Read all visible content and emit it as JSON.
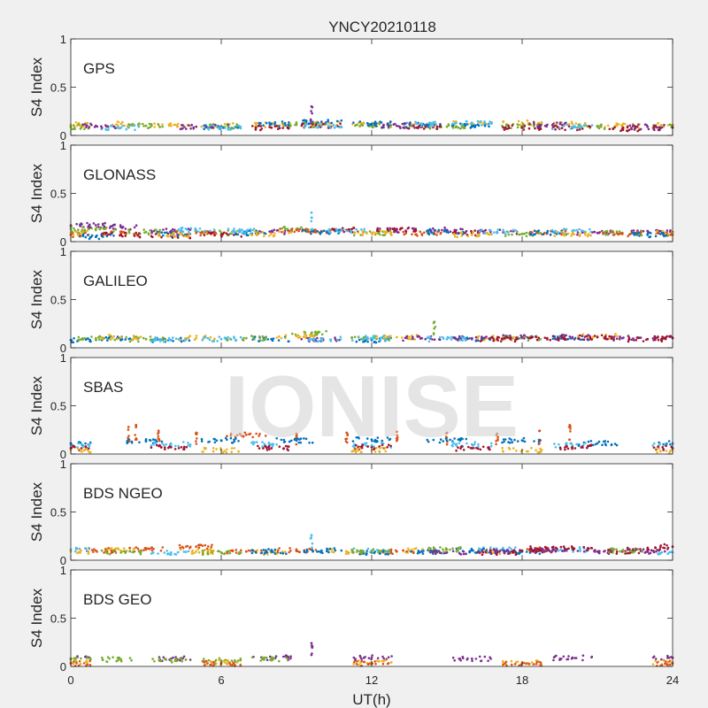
{
  "chart_data": {
    "type": "scatter",
    "title": "YNCY20210118",
    "xlabel": "UT(h)",
    "ylabel": "S4 Index",
    "xlim": [
      0,
      24
    ],
    "ylim": [
      0,
      1
    ],
    "xticks": [
      "0",
      "6",
      "12",
      "18",
      "24"
    ],
    "yticks": [
      "0",
      "0.5",
      "1"
    ],
    "grid": false,
    "watermark": "IONISE",
    "colors": [
      "#0072BD",
      "#D95319",
      "#EDB120",
      "#7E2F8E",
      "#77AC30",
      "#4DBEEE",
      "#A2142F"
    ],
    "panels": [
      {
        "label": "GPS",
        "series": [
          {
            "color": "#EDB120",
            "x": [
              0,
              2,
              4,
              6,
              8,
              10,
              12,
              14,
              16,
              18,
              20,
              22,
              24
            ],
            "y": [
              0.11,
              0.12,
              0.1,
              0.1,
              0.11,
              0.12,
              0.11,
              0.1,
              0.12,
              0.13,
              0.12,
              0.1,
              0.11
            ]
          },
          {
            "color": "#77AC30",
            "x": [
              0,
              3,
              6,
              9,
              12,
              15,
              18,
              21,
              24
            ],
            "y": [
              0.09,
              0.1,
              0.09,
              0.11,
              0.1,
              0.09,
              0.1,
              0.09,
              0.1
            ]
          },
          {
            "color": "#0072BD",
            "x": [
              6,
              8,
              10,
              12,
              14,
              16
            ],
            "y": [
              0.09,
              0.12,
              0.14,
              0.12,
              0.11,
              0.1
            ]
          },
          {
            "color": "#A2142F",
            "x": [
              8,
              10,
              14,
              18,
              20,
              22,
              24
            ],
            "y": [
              0.08,
              0.1,
              0.09,
              0.08,
              0.08,
              0.07,
              0.08
            ]
          },
          {
            "color": "#4DBEEE",
            "x": [
              2,
              6,
              10,
              14,
              16,
              20
            ],
            "y": [
              0.08,
              0.08,
              0.1,
              0.12,
              0.13,
              0.09
            ]
          },
          {
            "color": "#7E2F8E",
            "x": [
              1,
              5,
              9.6,
              13,
              19,
              23
            ],
            "y": [
              0.1,
              0.09,
              0.3,
              0.1,
              0.11,
              0.09
            ]
          }
        ]
      },
      {
        "label": "GLONASS",
        "series": [
          {
            "color": "#7E2F8E",
            "x": [
              0,
              1,
              2,
              4,
              8,
              13,
              15,
              17,
              21,
              23,
              24
            ],
            "y": [
              0.16,
              0.17,
              0.15,
              0.11,
              0.1,
              0.12,
              0.12,
              0.1,
              0.09,
              0.11,
              0.1
            ]
          },
          {
            "color": "#77AC30",
            "x": [
              0,
              1,
              3,
              6,
              9,
              12,
              18,
              22
            ],
            "y": [
              0.13,
              0.12,
              0.1,
              0.09,
              0.13,
              0.09,
              0.08,
              0.09
            ]
          },
          {
            "color": "#D95319",
            "x": [
              0,
              2,
              5,
              9,
              10,
              14,
              19,
              22,
              24
            ],
            "y": [
              0.07,
              0.08,
              0.09,
              0.12,
              0.11,
              0.08,
              0.09,
              0.08,
              0.07
            ]
          },
          {
            "color": "#A2142F",
            "x": [
              2,
              4,
              6,
              11,
              13,
              16
            ],
            "y": [
              0.07,
              0.06,
              0.07,
              0.12,
              0.13,
              0.09
            ]
          },
          {
            "color": "#0072BD",
            "x": [
              1,
              4,
              7,
              10,
              15,
              19,
              23
            ],
            "y": [
              0.05,
              0.08,
              0.09,
              0.1,
              0.1,
              0.09,
              0.07
            ]
          },
          {
            "color": "#4DBEEE",
            "x": [
              5,
              7,
              9.6,
              11,
              17,
              20
            ],
            "y": [
              0.12,
              0.11,
              0.3,
              0.11,
              0.1,
              0.11
            ]
          },
          {
            "color": "#EDB120",
            "x": [
              0,
              4,
              8,
              12,
              16,
              20,
              24
            ],
            "y": [
              0.09,
              0.07,
              0.08,
              0.09,
              0.07,
              0.08,
              0.09
            ]
          }
        ]
      },
      {
        "label": "GALILEO",
        "series": [
          {
            "color": "#0072BD",
            "x": [
              0,
              2,
              4,
              8,
              12,
              16,
              20
            ],
            "y": [
              0.08,
              0.09,
              0.08,
              0.09,
              0.08,
              0.09,
              0.1
            ]
          },
          {
            "color": "#77AC30",
            "x": [
              1,
              3,
              7,
              9.6,
              12,
              14.5,
              18
            ],
            "y": [
              0.1,
              0.09,
              0.1,
              0.15,
              0.1,
              0.27,
              0.1
            ]
          },
          {
            "color": "#EDB120",
            "x": [
              2,
              5,
              9,
              13,
              17,
              21
            ],
            "y": [
              0.11,
              0.1,
              0.12,
              0.11,
              0.1,
              0.12
            ]
          },
          {
            "color": "#7E2F8E",
            "x": [
              10,
              14,
              16,
              18,
              20,
              22,
              24
            ],
            "y": [
              0.09,
              0.1,
              0.1,
              0.11,
              0.11,
              0.1,
              0.1
            ]
          },
          {
            "color": "#A2142F",
            "x": [
              17,
              19,
              21,
              23,
              24
            ],
            "y": [
              0.09,
              0.1,
              0.11,
              0.09,
              0.1
            ]
          },
          {
            "color": "#4DBEEE",
            "x": [
              4,
              6,
              10,
              12,
              15
            ],
            "y": [
              0.08,
              0.09,
              0.09,
              0.1,
              0.09
            ]
          }
        ]
      },
      {
        "label": "SBAS",
        "series": [
          {
            "color": "#D95319",
            "x": [
              2.3,
              2.6,
              3.5,
              5,
              7,
              9,
              11,
              13,
              15,
              17,
              18.7,
              19.9
            ],
            "y": [
              0.28,
              0.3,
              0.24,
              0.22,
              0.2,
              0.21,
              0.22,
              0.23,
              0.22,
              0.21,
              0.24,
              0.3
            ]
          },
          {
            "color": "#0072BD",
            "x": [
              0,
              3,
              6,
              9,
              12,
              15,
              18,
              21,
              24
            ],
            "y": [
              0.11,
              0.13,
              0.14,
              0.14,
              0.15,
              0.14,
              0.14,
              0.11,
              0.11
            ]
          },
          {
            "color": "#4DBEEE",
            "x": [
              0,
              4,
              8,
              12,
              16,
              20,
              24
            ],
            "y": [
              0.09,
              0.1,
              0.1,
              0.09,
              0.1,
              0.09,
              0.1
            ]
          },
          {
            "color": "#A2142F",
            "x": [
              0,
              4,
              8,
              12,
              16,
              20,
              24
            ],
            "y": [
              0.06,
              0.07,
              0.06,
              0.07,
              0.06,
              0.07,
              0.06
            ]
          },
          {
            "color": "#EDB120",
            "x": [
              0,
              6,
              12,
              18,
              24
            ],
            "y": [
              0.04,
              0.04,
              0.04,
              0.04,
              0.04
            ]
          }
        ]
      },
      {
        "label": "BDS NGEO",
        "series": [
          {
            "color": "#EDB120",
            "x": [
              0,
              2,
              5,
              8,
              11,
              14,
              17
            ],
            "y": [
              0.09,
              0.1,
              0.09,
              0.08,
              0.09,
              0.1,
              0.09
            ]
          },
          {
            "color": "#D95319",
            "x": [
              1,
              3,
              5,
              7,
              9,
              13,
              19
            ],
            "y": [
              0.1,
              0.11,
              0.14,
              0.09,
              0.1,
              0.09,
              0.11
            ]
          },
          {
            "color": "#4DBEEE",
            "x": [
              0,
              4,
              9.6,
              12,
              17,
              20,
              24
            ],
            "y": [
              0.11,
              0.08,
              0.26,
              0.1,
              0.11,
              0.11,
              0.08
            ]
          },
          {
            "color": "#0072BD",
            "x": [
              8,
              10,
              12,
              14,
              16,
              18
            ],
            "y": [
              0.09,
              0.1,
              0.08,
              0.09,
              0.1,
              0.09
            ]
          },
          {
            "color": "#A2142F",
            "x": [
              17,
              18,
              19,
              20,
              22,
              23,
              24
            ],
            "y": [
              0.08,
              0.1,
              0.12,
              0.13,
              0.09,
              0.11,
              0.14
            ]
          },
          {
            "color": "#7E2F8E",
            "x": [
              15,
              17,
              19,
              21,
              23
            ],
            "y": [
              0.08,
              0.09,
              0.1,
              0.09,
              0.09
            ]
          },
          {
            "color": "#77AC30",
            "x": [
              2,
              6,
              12,
              15,
              22
            ],
            "y": [
              0.08,
              0.08,
              0.09,
              0.11,
              0.1
            ]
          }
        ]
      },
      {
        "label": "BDS GEO",
        "series": [
          {
            "color": "#7E2F8E",
            "x": [
              0,
              4,
              8,
              9.6,
              12,
              16,
              20,
              24
            ],
            "y": [
              0.08,
              0.08,
              0.09,
              0.24,
              0.09,
              0.08,
              0.09,
              0.09
            ]
          },
          {
            "color": "#77AC30",
            "x": [
              0,
              2,
              4,
              6,
              8
            ],
            "y": [
              0.07,
              0.07,
              0.06,
              0.06,
              0.07
            ]
          },
          {
            "color": "#EDB120",
            "x": [
              0,
              6,
              12,
              18,
              24
            ],
            "y": [
              0.04,
              0.04,
              0.04,
              0.04,
              0.04
            ]
          },
          {
            "color": "#D95319",
            "x": [
              0,
              6,
              12,
              18,
              24
            ],
            "y": [
              0.03,
              0.03,
              0.03,
              0.03,
              0.03
            ]
          }
        ]
      }
    ]
  }
}
